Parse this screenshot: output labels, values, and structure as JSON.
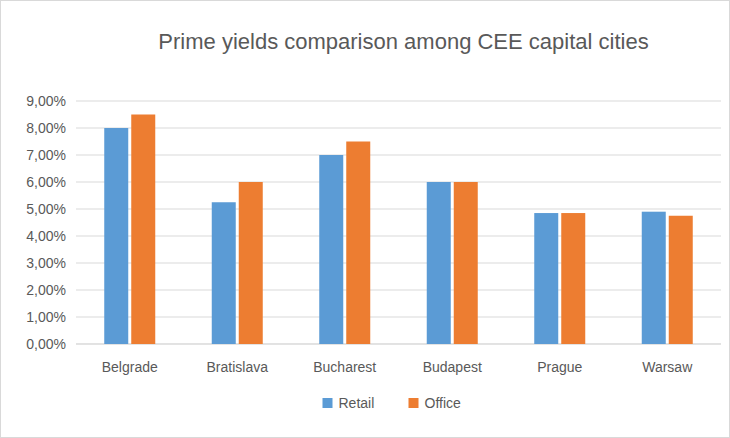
{
  "chart_data": {
    "type": "bar",
    "title": "Prime yields comparison among CEE capital cities",
    "categories": [
      "Belgrade",
      "Bratislava",
      "Bucharest",
      "Budapest",
      "Prague",
      "Warsaw"
    ],
    "series": [
      {
        "name": "Retail",
        "color": "#5b9bd5",
        "values": [
          8.0,
          5.25,
          7.0,
          6.0,
          4.85,
          4.9
        ]
      },
      {
        "name": "Office",
        "color": "#ed7d31",
        "values": [
          8.5,
          6.0,
          7.5,
          6.0,
          4.85,
          4.75
        ]
      }
    ],
    "ylim": [
      0,
      9
    ],
    "yticks": [
      {
        "value": 0,
        "label": "0,00%"
      },
      {
        "value": 1,
        "label": "1,00%"
      },
      {
        "value": 2,
        "label": "2,00%"
      },
      {
        "value": 3,
        "label": "3,00%"
      },
      {
        "value": 4,
        "label": "4,00%"
      },
      {
        "value": 5,
        "label": "5,00%"
      },
      {
        "value": 6,
        "label": "6,00%"
      },
      {
        "value": 7,
        "label": "7,00%"
      },
      {
        "value": 8,
        "label": "8,00%"
      },
      {
        "value": 9,
        "label": "9,00%"
      }
    ],
    "grid": true,
    "legend": "bottom"
  }
}
